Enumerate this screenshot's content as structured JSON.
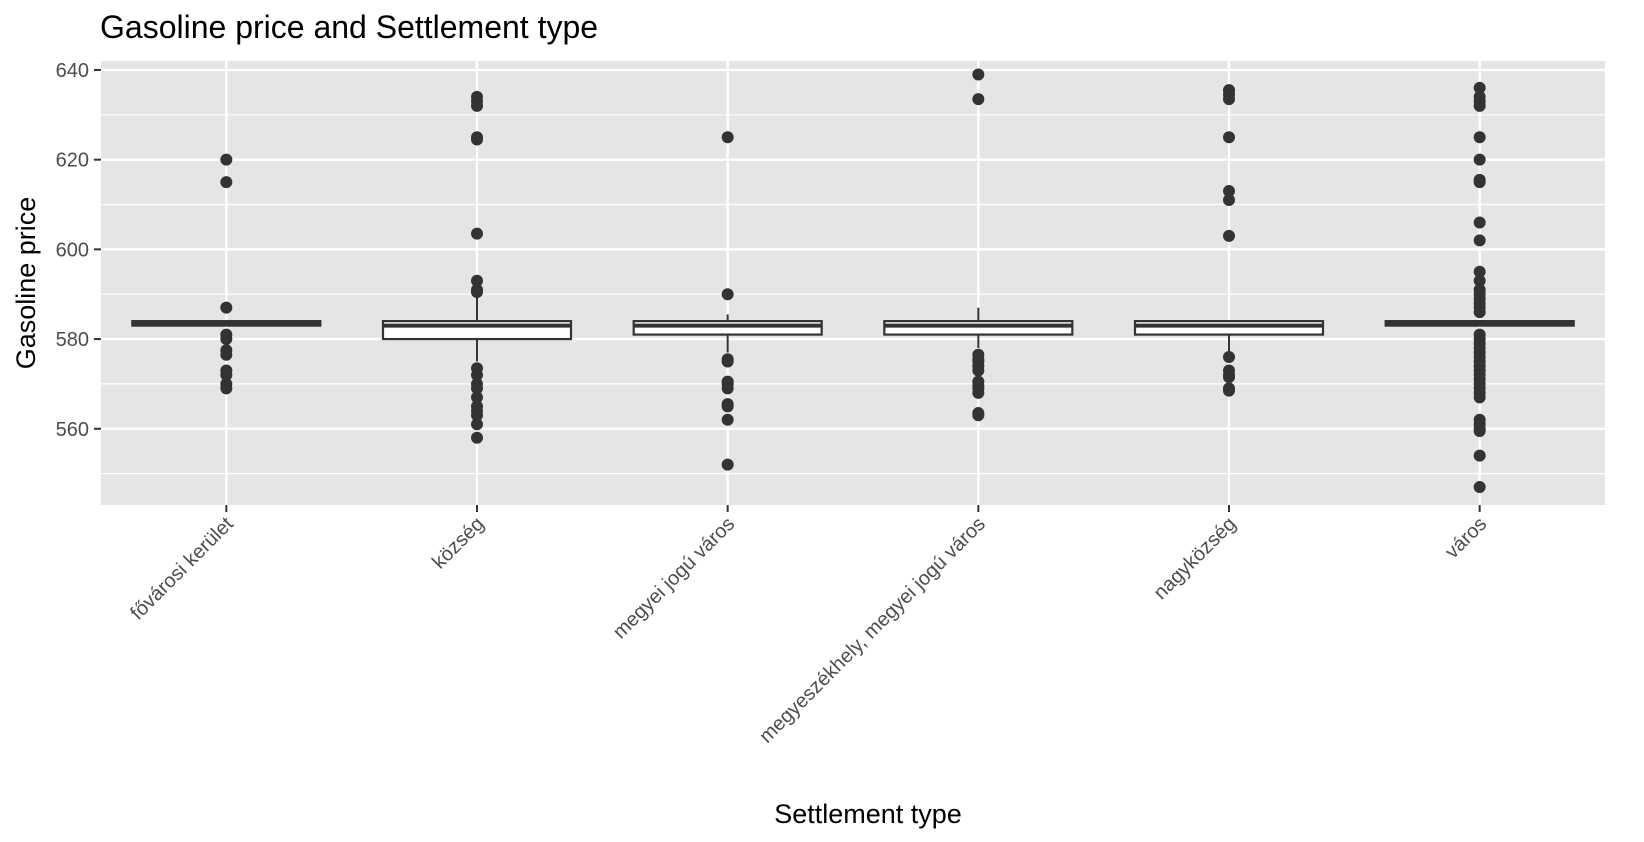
{
  "chart_data": {
    "type": "boxplot",
    "title": "Gasoline price and Settlement type",
    "xlabel": "Settlement type",
    "ylabel": "Gasoline price",
    "ylim": [
      543,
      642
    ],
    "yticks": [
      560,
      580,
      600,
      620,
      640
    ],
    "grid": true,
    "colors": {
      "panel": "#e5e5e5",
      "grid": "#ffffff",
      "box_fill": "#ffffff",
      "box_line": "#333333",
      "point": "#333333"
    },
    "categories": [
      "fővárosi kerület",
      "község",
      "megyei jogú város",
      "megyeszékhely, megyei jogú város",
      "nagyközség",
      "város"
    ],
    "boxes": [
      {
        "category": "fővárosi kerület",
        "q1": 583,
        "median": 583.5,
        "q3": 584,
        "whisker_low": 583,
        "whisker_high": 584,
        "outliers": [
          620,
          615,
          587,
          581,
          580,
          577.5,
          576.5,
          573,
          572,
          570,
          569
        ]
      },
      {
        "category": "község",
        "q1": 580,
        "median": 583,
        "q3": 584,
        "whisker_low": 575,
        "whisker_high": 590,
        "outliers": [
          634,
          633,
          632,
          625,
          624.5,
          603.5,
          593,
          591,
          590.5,
          573.5,
          572,
          570,
          569,
          567,
          565,
          564,
          563,
          561,
          558
        ]
      },
      {
        "category": "megyei jogú város",
        "q1": 581,
        "median": 583,
        "q3": 584,
        "whisker_low": 577,
        "whisker_high": 585.5,
        "outliers": [
          625,
          590,
          575.5,
          575,
          570.5,
          570,
          569,
          565.5,
          565,
          562,
          552
        ]
      },
      {
        "category": "megyeszékhely, megyei jogú város",
        "q1": 581,
        "median": 583,
        "q3": 584,
        "whisker_low": 578,
        "whisker_high": 587,
        "outliers": [
          639,
          633.5,
          576.5,
          575.5,
          575,
          574,
          573,
          570.5,
          569.5,
          569,
          568,
          563.5,
          563
        ]
      },
      {
        "category": "nagyközség",
        "q1": 581,
        "median": 583,
        "q3": 584,
        "whisker_low": 577,
        "whisker_high": 584,
        "outliers": [
          635.5,
          634.5,
          633.5,
          625,
          613,
          611,
          603,
          576,
          573,
          572,
          571.5,
          569,
          568.5
        ]
      },
      {
        "category": "város",
        "q1": 583,
        "median": 583.5,
        "q3": 584,
        "whisker_low": 583,
        "whisker_high": 584,
        "outliers": [
          636,
          634,
          633,
          632,
          625,
          620,
          615.5,
          615,
          606,
          602,
          595,
          593,
          591,
          590,
          589,
          588,
          587,
          586,
          581,
          580,
          579,
          578,
          577,
          576,
          575,
          574,
          573,
          572,
          571,
          570,
          569,
          568,
          567,
          562,
          561,
          560,
          559.5,
          554,
          547
        ]
      }
    ]
  }
}
